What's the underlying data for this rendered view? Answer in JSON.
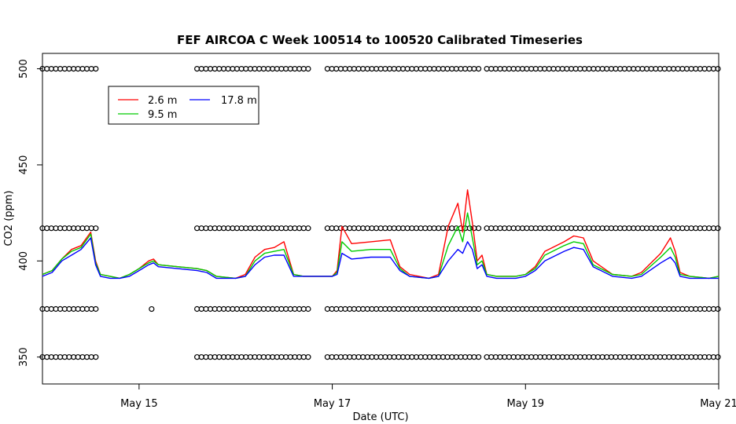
{
  "chart_data": {
    "type": "line",
    "title": "FEF AIRCOA C  Week 100514 to 100520  Calibrated Timeseries",
    "xlabel": "Date (UTC)",
    "ylabel": "CO2 (ppm)",
    "xlim": [
      14.0,
      21.0
    ],
    "ylim": [
      336,
      508
    ],
    "x_ticks": [
      {
        "value": 15,
        "label": "May 15"
      },
      {
        "value": 17,
        "label": "May 17"
      },
      {
        "value": 19,
        "label": "May 19"
      },
      {
        "value": 21,
        "label": "May 21"
      }
    ],
    "y_ticks": [
      {
        "value": 350,
        "label": "350"
      },
      {
        "value": 400,
        "label": "400"
      },
      {
        "value": 450,
        "label": "450"
      },
      {
        "value": 500,
        "label": "500"
      }
    ],
    "legend": {
      "placement": "top-left",
      "entries": [
        {
          "name": "2.6 m",
          "color": "#ff0000"
        },
        {
          "name": "9.5 m",
          "color": "#00cc00"
        },
        {
          "name": "17.8 m",
          "color": "#0000ff"
        }
      ]
    },
    "series": [
      {
        "name": "2.6 m",
        "color": "#ff0000",
        "x": [
          14.0,
          14.1,
          14.2,
          14.3,
          14.4,
          14.5,
          14.55,
          14.6,
          14.7,
          14.8,
          14.9,
          15.0,
          15.1,
          15.15,
          15.2,
          15.4,
          15.6,
          15.7,
          15.8,
          16.0,
          16.1,
          16.2,
          16.3,
          16.4,
          16.5,
          16.6,
          16.7,
          16.9,
          17.0,
          17.05,
          17.1,
          17.2,
          17.4,
          17.6,
          17.7,
          17.8,
          18.0,
          18.1,
          18.2,
          18.3,
          18.35,
          18.4,
          18.45,
          18.5,
          18.55,
          18.6,
          18.7,
          18.9,
          19.0,
          19.1,
          19.2,
          19.4,
          19.5,
          19.6,
          19.7,
          19.9,
          20.1,
          20.2,
          20.4,
          20.5,
          20.55,
          20.6,
          20.7,
          20.9,
          21.0
        ],
        "values": [
          393,
          395,
          401,
          406,
          408,
          415,
          400,
          393,
          392,
          391,
          393,
          396,
          400,
          401,
          398,
          397,
          396,
          395,
          392,
          391,
          393,
          402,
          406,
          407,
          410,
          393,
          392,
          392,
          392,
          395,
          418,
          409,
          410,
          411,
          397,
          393,
          391,
          393,
          418,
          430,
          415,
          437,
          420,
          400,
          403,
          393,
          392,
          392,
          393,
          397,
          405,
          410,
          413,
          412,
          400,
          393,
          392,
          394,
          404,
          412,
          405,
          394,
          392,
          391,
          392
        ]
      },
      {
        "name": "9.5 m",
        "color": "#00cc00",
        "x": [
          14.0,
          14.1,
          14.2,
          14.3,
          14.4,
          14.5,
          14.55,
          14.6,
          14.7,
          14.8,
          14.9,
          15.0,
          15.1,
          15.15,
          15.2,
          15.4,
          15.6,
          15.7,
          15.8,
          16.0,
          16.1,
          16.2,
          16.3,
          16.4,
          16.5,
          16.6,
          16.7,
          16.9,
          17.0,
          17.05,
          17.1,
          17.2,
          17.4,
          17.6,
          17.7,
          17.8,
          18.0,
          18.1,
          18.2,
          18.3,
          18.35,
          18.4,
          18.45,
          18.5,
          18.55,
          18.6,
          18.7,
          18.9,
          19.0,
          19.1,
          19.2,
          19.4,
          19.5,
          19.6,
          19.7,
          19.9,
          20.1,
          20.2,
          20.4,
          20.5,
          20.55,
          20.6,
          20.7,
          20.9,
          21.0
        ],
        "values": [
          393,
          395,
          401,
          405,
          407,
          414,
          399,
          393,
          392,
          391,
          393,
          396,
          399,
          400,
          398,
          397,
          396,
          395,
          392,
          391,
          392,
          400,
          404,
          405,
          406,
          393,
          392,
          392,
          392,
          394,
          410,
          405,
          406,
          406,
          396,
          392,
          391,
          392,
          408,
          418,
          410,
          425,
          412,
          398,
          400,
          393,
          392,
          392,
          393,
          396,
          403,
          408,
          410,
          409,
          398,
          393,
          392,
          393,
          402,
          407,
          402,
          393,
          392,
          391,
          392
        ]
      },
      {
        "name": "17.8 m",
        "color": "#0000ff",
        "x": [
          14.0,
          14.1,
          14.2,
          14.3,
          14.4,
          14.5,
          14.55,
          14.6,
          14.7,
          14.8,
          14.9,
          15.0,
          15.1,
          15.15,
          15.2,
          15.4,
          15.6,
          15.7,
          15.8,
          16.0,
          16.1,
          16.2,
          16.3,
          16.4,
          16.5,
          16.6,
          16.7,
          16.9,
          17.0,
          17.05,
          17.1,
          17.2,
          17.4,
          17.6,
          17.7,
          17.8,
          18.0,
          18.1,
          18.2,
          18.3,
          18.35,
          18.4,
          18.45,
          18.5,
          18.55,
          18.6,
          18.7,
          18.9,
          19.0,
          19.1,
          19.2,
          19.4,
          19.5,
          19.6,
          19.7,
          19.9,
          20.1,
          20.2,
          20.4,
          20.5,
          20.55,
          20.6,
          20.7,
          20.9,
          21.0
        ],
        "values": [
          392,
          394,
          400,
          403,
          406,
          412,
          398,
          392,
          391,
          391,
          392,
          395,
          398,
          399,
          397,
          396,
          395,
          394,
          391,
          391,
          392,
          398,
          402,
          403,
          403,
          392,
          392,
          392,
          392,
          393,
          404,
          401,
          402,
          402,
          395,
          392,
          391,
          392,
          400,
          406,
          404,
          410,
          406,
          396,
          398,
          392,
          391,
          391,
          392,
          395,
          400,
          405,
          407,
          406,
          397,
          392,
          391,
          392,
          399,
          402,
          399,
          392,
          391,
          391,
          391
        ]
      }
    ],
    "calibration_markers": {
      "levels": [
        350,
        375,
        417,
        500
      ],
      "intervals": [
        [
          14.0,
          14.58
        ],
        [
          15.6,
          16.75
        ],
        [
          16.95,
          18.55
        ],
        [
          18.6,
          21.0
        ]
      ],
      "extra_points": [
        {
          "x": 15.13,
          "y": 375
        }
      ]
    }
  }
}
